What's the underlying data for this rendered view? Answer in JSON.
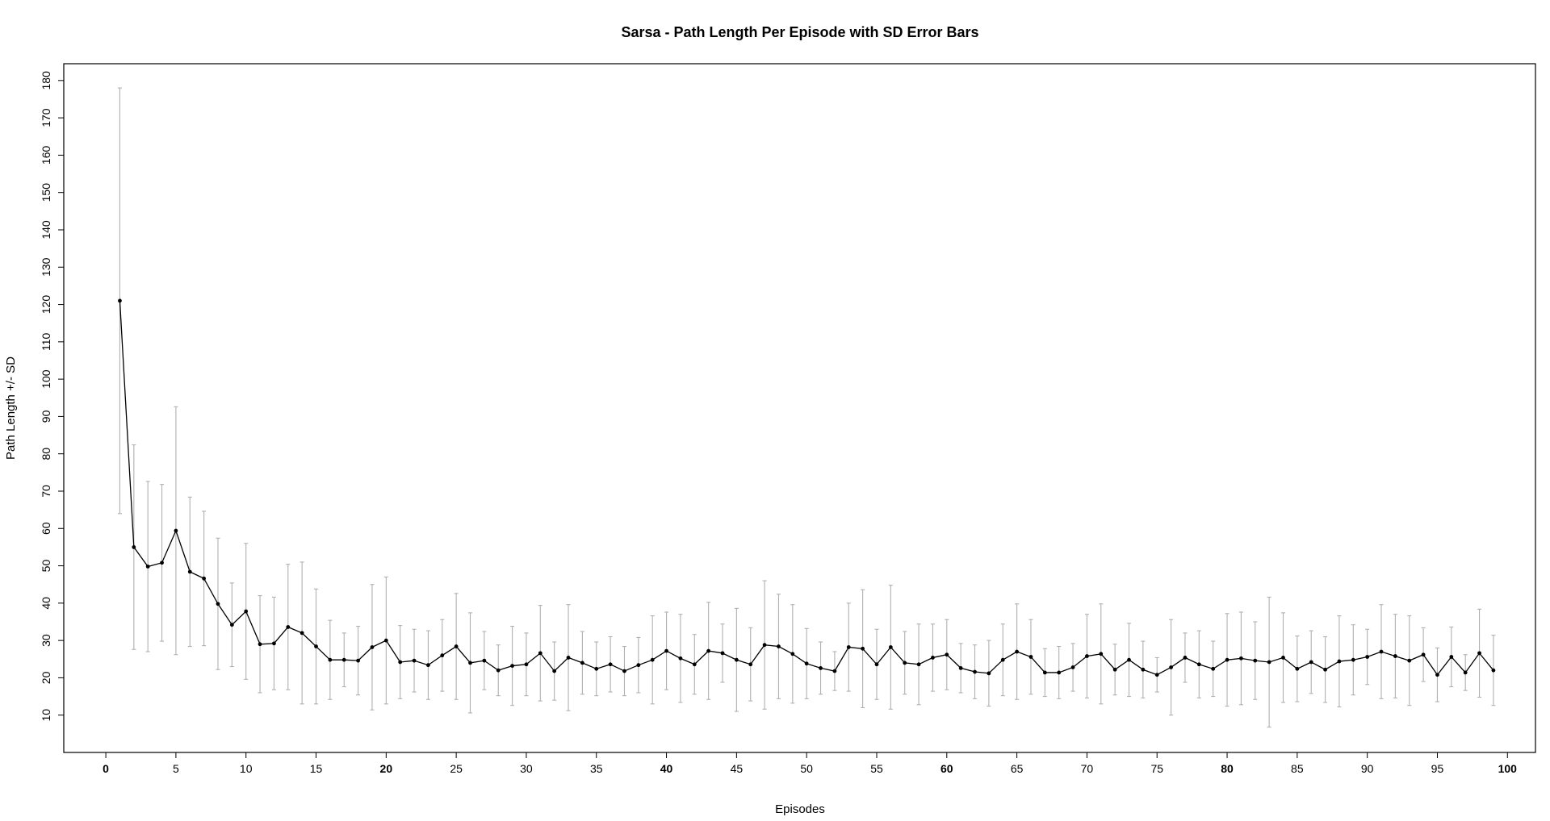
{
  "chart_data": {
    "type": "line",
    "title": "Sarsa - Path Length Per Episode with SD Error Bars",
    "xlabel": "Episodes",
    "ylabel": "Path Length +/- SD",
    "xlim": [
      -3,
      102
    ],
    "ylim": [
      0,
      184.5
    ],
    "x_ticks": [
      0,
      5,
      10,
      15,
      20,
      25,
      30,
      35,
      40,
      45,
      50,
      55,
      60,
      65,
      70,
      75,
      80,
      85,
      90,
      95,
      100
    ],
    "y_ticks": [
      10,
      20,
      30,
      40,
      50,
      60,
      70,
      80,
      90,
      100,
      110,
      120,
      130,
      140,
      150,
      160,
      170,
      180
    ],
    "grid": false,
    "colors": {
      "line": "#000000",
      "point": "#000000",
      "error_bar": "#b0b0b0",
      "frame": "#000000"
    },
    "series": [
      {
        "x": [
          1,
          2,
          3,
          4,
          5,
          6,
          7,
          8,
          9,
          10,
          11,
          12,
          13,
          14,
          15,
          16,
          17,
          18,
          19,
          20,
          21,
          22,
          23,
          24,
          25,
          26,
          27,
          28,
          29,
          30,
          31,
          32,
          33,
          34,
          35,
          36,
          37,
          38,
          39,
          40,
          41,
          42,
          43,
          44,
          45,
          46,
          47,
          48,
          49,
          50,
          51,
          52,
          53,
          54,
          55,
          56,
          57,
          58,
          59,
          60,
          61,
          62,
          63,
          64,
          65,
          66,
          67,
          68,
          69,
          70,
          71,
          72,
          73,
          74,
          75,
          76,
          77,
          78,
          79,
          80,
          81,
          82,
          83,
          84,
          85,
          86,
          87,
          88,
          89,
          90,
          91,
          92,
          93,
          94,
          95,
          96,
          97,
          98,
          99
        ],
        "y": [
          121,
          55,
          49.8,
          50.8,
          59.4,
          48.4,
          46.6,
          39.8,
          34.2,
          37.8,
          29,
          29.2,
          33.6,
          32,
          28.4,
          24.8,
          24.8,
          24.6,
          28.2,
          30,
          24.2,
          24.6,
          23.4,
          26,
          28.4,
          24,
          24.6,
          22,
          23.2,
          23.6,
          26.6,
          21.8,
          25.4,
          24,
          22.4,
          23.6,
          21.8,
          23.4,
          24.8,
          27.2,
          25.2,
          23.6,
          27.2,
          26.6,
          24.8,
          23.6,
          28.8,
          28.4,
          26.4,
          23.8,
          22.6,
          21.8,
          28.2,
          27.8,
          23.6,
          28.2,
          24,
          23.6,
          25.4,
          26.2,
          22.6,
          21.6,
          21.2,
          24.8,
          27,
          25.6,
          21.4,
          21.4,
          22.8,
          25.8,
          26.4,
          22.2,
          24.8,
          22.2,
          20.8,
          22.8,
          25.4,
          23.6,
          22.4,
          24.8,
          25.2,
          24.6,
          24.2,
          25.4,
          22.4,
          24.2,
          22.2,
          24.4,
          24.8,
          25.6,
          27,
          25.8,
          24.6,
          26.2,
          20.8,
          25.6,
          21.4,
          26.6,
          22
        ],
        "sd": [
          57,
          27.4,
          22.8,
          21,
          33.2,
          20,
          18,
          17.6,
          11.2,
          18.2,
          13,
          12.4,
          16.8,
          19,
          15.4,
          10.6,
          7.2,
          9.2,
          16.8,
          17,
          9.8,
          8.4,
          9.2,
          9.6,
          14.2,
          13.4,
          7.8,
          6.8,
          10.6,
          8.4,
          12.8,
          7.8,
          14.2,
          8.4,
          7.2,
          7.4,
          6.6,
          7.4,
          11.8,
          10.4,
          11.8,
          8,
          13,
          7.8,
          13.8,
          9.8,
          17.2,
          14,
          13.2,
          9.4,
          7,
          5.2,
          11.8,
          15.8,
          9.4,
          16.6,
          8.4,
          10.8,
          9,
          9.4,
          6.6,
          7.2,
          8.8,
          9.6,
          12.8,
          10,
          6.4,
          7,
          6.4,
          11.2,
          13.4,
          6.8,
          9.8,
          7.6,
          4.6,
          12.8,
          6.6,
          9,
          7.4,
          12.4,
          12.4,
          10.4,
          17.4,
          12,
          8.8,
          8.4,
          8.8,
          12.2,
          9.4,
          7.4,
          12.6,
          11.2,
          12,
          7.2,
          7.2,
          8,
          4.8,
          11.8,
          9.4
        ]
      }
    ]
  }
}
